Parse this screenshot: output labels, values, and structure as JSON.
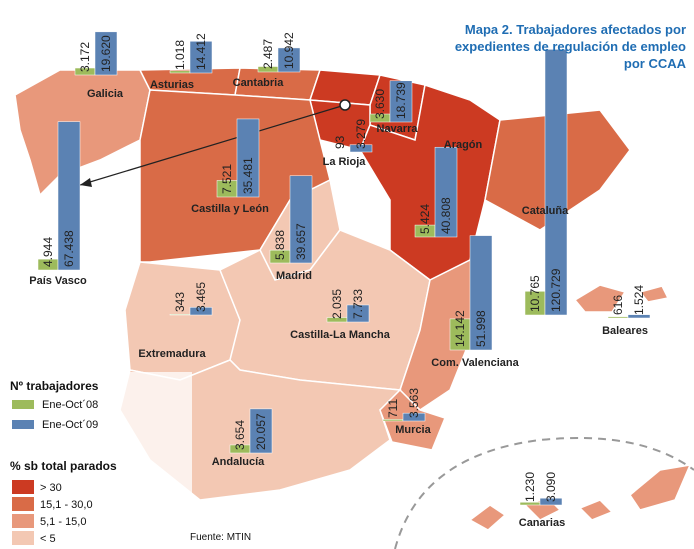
{
  "title_lines": [
    "Mapa 2. Trabajadores afectados por",
    "expedientes de regulación de empleo",
    "por CCAA"
  ],
  "legend": {
    "series_title": "Nº trabajadores",
    "series": [
      {
        "name": "Ene-Oct´08",
        "color": "#9dbb5c"
      },
      {
        "name": "Ene-Oct´09",
        "color": "#5b82b3"
      }
    ],
    "classes_title": "% sb total parados",
    "classes": [
      {
        "label": "> 30",
        "color": "#cc3a22"
      },
      {
        "label": "15,1 - 30,0",
        "color": "#d96b47"
      },
      {
        "label": "5,1 - 15,0",
        "color": "#e8987b"
      },
      {
        "label": "< 5",
        "color": "#f3c8b3"
      }
    ]
  },
  "regions": [
    {
      "name": "Galicia",
      "color": "#e8987b",
      "values": [
        3172,
        19620
      ],
      "value_labels": [
        "3.172",
        "19.620"
      ]
    },
    {
      "name": "Asturias",
      "color": "#d96b47",
      "values": [
        1018,
        14412
      ],
      "value_labels": [
        "1.018",
        "14.412"
      ]
    },
    {
      "name": "Cantabria",
      "color": "#d96b47",
      "values": [
        2487,
        10942
      ],
      "value_labels": [
        "2.487",
        "10.942"
      ]
    },
    {
      "name": "País Vasco",
      "color": "#cc3a22",
      "values": [
        4944,
        67438
      ],
      "value_labels": [
        "4.944",
        "67.438"
      ]
    },
    {
      "name": "Navarra",
      "color": "#cc3a22",
      "values": [
        3630,
        18739
      ],
      "value_labels": [
        "3.630",
        "18.739"
      ]
    },
    {
      "name": "La Rioja",
      "color": "#cc3a22",
      "values": [
        93,
        3279
      ],
      "value_labels": [
        "93",
        "3.279"
      ]
    },
    {
      "name": "Castilla y León",
      "color": "#d96b47",
      "values": [
        7521,
        35481
      ],
      "value_labels": [
        "7.521",
        "35.481"
      ]
    },
    {
      "name": "Madrid",
      "color": "#f3c8b3",
      "values": [
        5838,
        39657
      ],
      "value_labels": [
        "5.838",
        "39.657"
      ]
    },
    {
      "name": "Aragón",
      "color": "#cc3a22",
      "values": [
        5424,
        40808
      ],
      "value_labels": [
        "5.424",
        "40.808"
      ]
    },
    {
      "name": "Cataluña",
      "color": "#d96b47",
      "values": [
        10765,
        120729
      ],
      "value_labels": [
        "10.765",
        "120.729"
      ]
    },
    {
      "name": "Baleares",
      "color": "#e8987b",
      "values": [
        616,
        1524
      ],
      "value_labels": [
        "616",
        "1.524"
      ]
    },
    {
      "name": "Extremadura",
      "color": "#f3c8b3",
      "values": [
        343,
        3465
      ],
      "value_labels": [
        "343",
        "3.465"
      ]
    },
    {
      "name": "Castilla-La Mancha",
      "color": "#f3c8b3",
      "values": [
        2035,
        7733
      ],
      "value_labels": [
        "2.035",
        "7.733"
      ]
    },
    {
      "name": "Com. Valenciana",
      "color": "#e8987b",
      "values": [
        14142,
        51998
      ],
      "value_labels": [
        "14.142",
        "51.998"
      ]
    },
    {
      "name": "Andalucía",
      "color": "#f3c8b3",
      "values": [
        3654,
        20057
      ],
      "value_labels": [
        "3.654",
        "20.057"
      ]
    },
    {
      "name": "Murcia",
      "color": "#e8987b",
      "values": [
        711,
        3563
      ],
      "value_labels": [
        "711",
        "3.563"
      ]
    },
    {
      "name": "Canarias",
      "color": "#e8987b",
      "values": [
        1230,
        3090
      ],
      "value_labels": [
        "1.230",
        "3.090"
      ]
    }
  ],
  "source": "Fuente: MTIN"
}
